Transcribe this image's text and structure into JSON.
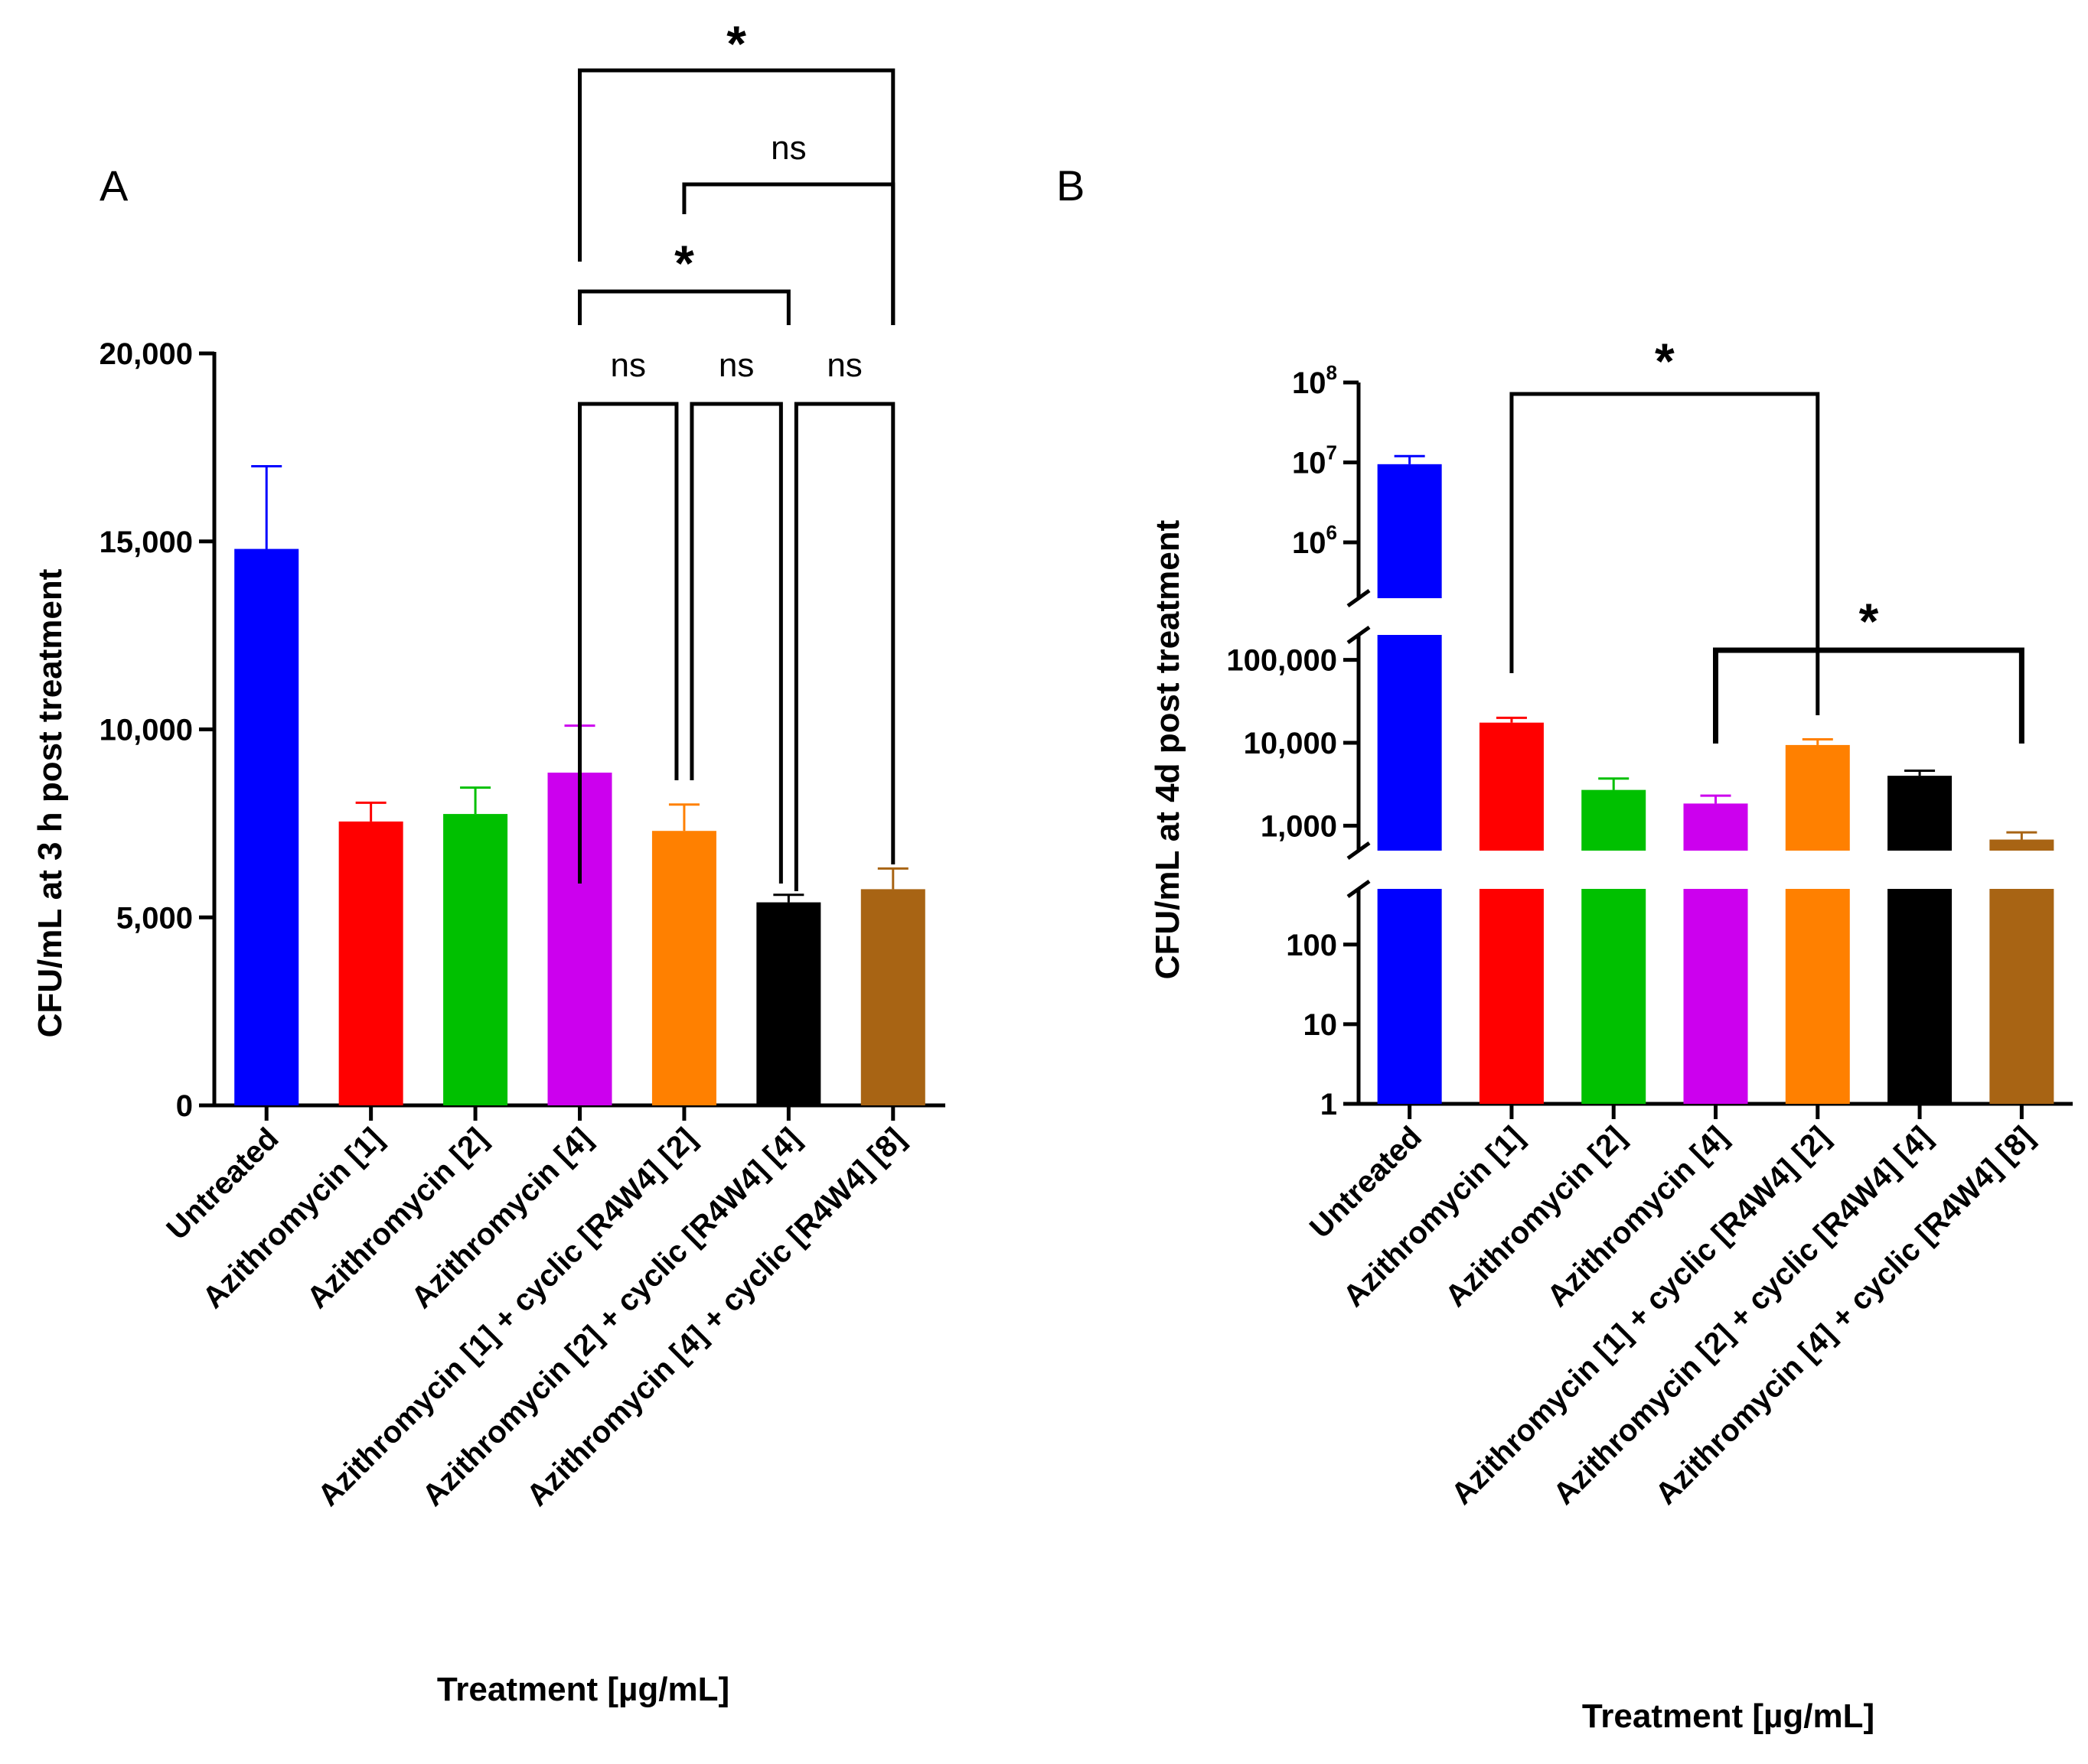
{
  "chart_data": [
    {
      "panel": "A",
      "type": "bar",
      "ylabel": "CFU/mL at 3 h post treatment",
      "xlabel": "Treatment [µg/mL]",
      "yscale": "linear",
      "ylim": [
        0,
        20000
      ],
      "yticks": [
        0,
        5000,
        10000,
        15000,
        20000
      ],
      "ytick_labels": [
        "0",
        "5,000",
        "10,000",
        "15,000",
        "20,000"
      ],
      "categories": [
        "Untreated",
        "Azithromycin [1]",
        "Azithromycin [2]",
        "Azithromycin [4]",
        "Azithromycin [1] + cyclic [R4W4] [2]",
        "Azithromycin [2] + cyclic [R4W4] [4]",
        "Azithromycin [4] + cyclic [R4W4] [8]"
      ],
      "values": [
        14800,
        7550,
        7750,
        8850,
        7300,
        5400,
        5750
      ],
      "errors": [
        2200,
        500,
        700,
        1250,
        700,
        200,
        550
      ],
      "colors": [
        "#0000ff",
        "#ff0000",
        "#00c000",
        "#cc00ee",
        "#ff8000",
        "#000000",
        "#a86414"
      ],
      "comparisons": [
        {
          "from": 3,
          "to": 4,
          "label": "ns"
        },
        {
          "from": 4,
          "to": 5,
          "label": "ns"
        },
        {
          "from": 5,
          "to": 6,
          "label": "ns"
        },
        {
          "from": 3,
          "to": 5,
          "label": "*"
        },
        {
          "from": 4,
          "to": 6,
          "label": "ns"
        },
        {
          "from": 3,
          "to": 6,
          "label": "*"
        }
      ]
    },
    {
      "panel": "B",
      "type": "bar",
      "ylabel": "CFU/mL at 4d post treatment",
      "xlabel": "Treatment [µg/mL]",
      "yscale": "log-segmented",
      "ylim": [
        1,
        100000000
      ],
      "ytick_labels": [
        "1",
        "10",
        "100",
        "1,000",
        "10,000",
        "100,000"
      ],
      "ytick_powers": [
        "6",
        "7",
        "8"
      ],
      "categories": [
        "Untreated",
        "Azithromycin [1]",
        "Azithromycin [2]",
        "Azithromycin [4]",
        "Azithromycin [1] + cyclic [R4W4] [2]",
        "Azithromycin [2] + cyclic [R4W4] [4]",
        "Azithromycin [4] + cyclic [R4W4] [8]"
      ],
      "values": [
        9500000,
        17500,
        2700,
        1850,
        9400,
        4000,
        680
      ],
      "error_tops": [
        12000000,
        20000,
        3700,
        2300,
        11000,
        4600,
        830
      ],
      "colors": [
        "#0000ff",
        "#ff0000",
        "#00c000",
        "#cc00ee",
        "#ff8000",
        "#000000",
        "#a86414"
      ],
      "comparisons": [
        {
          "from": 1,
          "to": 4,
          "label": "*"
        },
        {
          "from": 3,
          "to": 6,
          "label": "*"
        }
      ]
    }
  ],
  "labels": {
    "panel_a": "A",
    "panel_b": "B",
    "ten": "10"
  }
}
